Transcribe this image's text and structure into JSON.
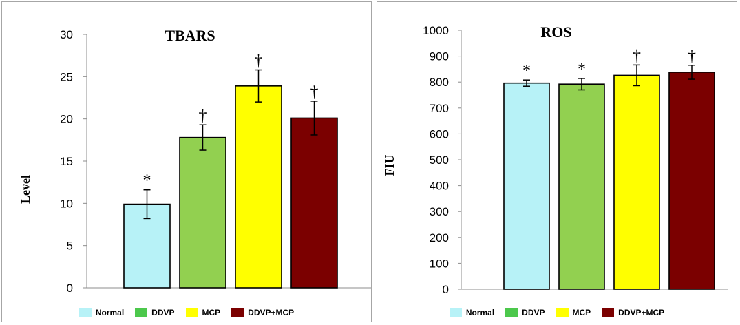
{
  "chart_data": [
    {
      "type": "bar",
      "title": "TBARS",
      "ylabel": "Level",
      "xlabel": "",
      "ylim": [
        0,
        30
      ],
      "yticks": [
        0,
        5,
        10,
        15,
        20,
        25,
        30
      ],
      "categories": [
        "Normal",
        "DDVP",
        "MCP",
        "DDVP+MCP"
      ],
      "values": [
        9.9,
        17.8,
        23.9,
        20.1
      ],
      "errors": [
        1.7,
        1.5,
        1.9,
        2.0
      ],
      "annotations": [
        "*",
        "†",
        "†",
        "†"
      ],
      "colors": [
        "#b7f2f7",
        "#92d050",
        "#ffff00",
        "#7b0000"
      ],
      "legend": {
        "placement": "bottom",
        "entries": [
          "Normal",
          "DDVP",
          "MCP",
          "DDVP+MCP"
        ],
        "colors": [
          "#b7f2f7",
          "#4cc84c",
          "#ffff00",
          "#7b0000"
        ]
      }
    },
    {
      "type": "bar",
      "title": "ROS",
      "ylabel": "FIU",
      "xlabel": "",
      "ylim": [
        0,
        1000
      ],
      "yticks": [
        0,
        100,
        200,
        300,
        400,
        500,
        600,
        700,
        800,
        900,
        1000
      ],
      "categories": [
        "Normal",
        "DDVP",
        "MCP",
        "DDVP+MCP"
      ],
      "values": [
        796,
        792,
        826,
        838
      ],
      "errors": [
        12,
        22,
        40,
        27
      ],
      "annotations": [
        "*",
        "*",
        "†",
        "†"
      ],
      "colors": [
        "#b7f2f7",
        "#92d050",
        "#ffff00",
        "#7b0000"
      ],
      "legend": {
        "placement": "bottom",
        "entries": [
          "Normal",
          "DDVP",
          "MCP",
          "DDVP+MCP"
        ],
        "colors": [
          "#b7f2f7",
          "#4cc84c",
          "#ffff00",
          "#7b0000"
        ]
      }
    }
  ]
}
